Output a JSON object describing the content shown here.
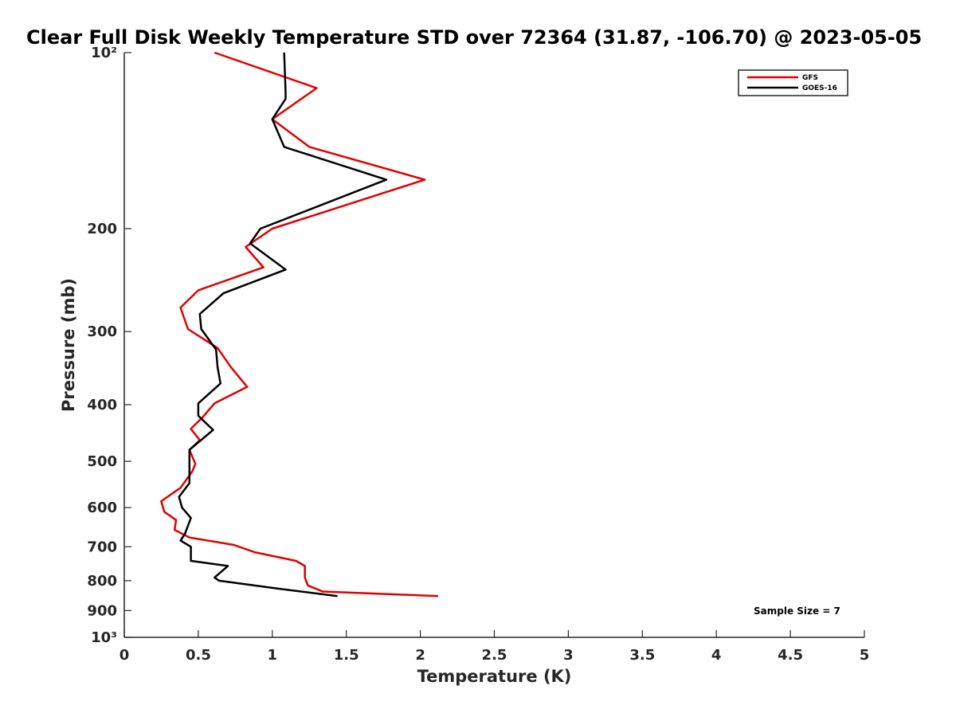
{
  "chart_data": {
    "type": "line",
    "title": "Clear Full Disk Weekly Temperature STD over 72364 (31.87, -106.70) @ 2023-05-05",
    "xlabel": "Temperature (K)",
    "ylabel": "Pressure (mb)",
    "xlim": [
      0,
      5
    ],
    "ylim": [
      100,
      1000
    ],
    "y_scale": "log",
    "y_reversed": true,
    "grid": false,
    "legend_position": "top-right",
    "x_ticks": [
      0,
      0.5,
      1,
      1.5,
      2,
      2.5,
      3,
      3.5,
      4,
      4.5,
      5
    ],
    "x_tick_labels": [
      "0",
      "0.5",
      "1",
      "1.5",
      "2",
      "2.5",
      "3",
      "3.5",
      "4",
      "4.5",
      "5"
    ],
    "y_ticks": [
      100,
      200,
      300,
      400,
      500,
      600,
      700,
      800,
      900,
      1000
    ],
    "y_tick_labels": [
      "10²",
      "200",
      "300",
      "400",
      "500",
      "600",
      "700",
      "800",
      "900",
      "10³"
    ],
    "annotation": "Sample Size = 7",
    "series": [
      {
        "name": "GFS",
        "color": "#e00000",
        "points": [
          [
            0.61,
            100
          ],
          [
            1.3,
            115
          ],
          [
            1.0,
            130
          ],
          [
            1.25,
            145
          ],
          [
            2.03,
            165
          ],
          [
            1.0,
            200
          ],
          [
            0.82,
            215
          ],
          [
            0.94,
            233
          ],
          [
            0.5,
            255
          ],
          [
            0.38,
            273
          ],
          [
            0.43,
            297
          ],
          [
            0.63,
            320
          ],
          [
            0.72,
            345
          ],
          [
            0.83,
            373
          ],
          [
            0.61,
            398
          ],
          [
            0.53,
            420
          ],
          [
            0.45,
            440
          ],
          [
            0.51,
            460
          ],
          [
            0.44,
            478
          ],
          [
            0.48,
            505
          ],
          [
            0.46,
            520
          ],
          [
            0.38,
            555
          ],
          [
            0.25,
            585
          ],
          [
            0.27,
            610
          ],
          [
            0.35,
            630
          ],
          [
            0.34,
            655
          ],
          [
            0.44,
            675
          ],
          [
            0.74,
            695
          ],
          [
            0.88,
            715
          ],
          [
            1.16,
            740
          ],
          [
            1.22,
            755
          ],
          [
            1.22,
            790
          ],
          [
            1.24,
            815
          ],
          [
            1.34,
            835
          ],
          [
            2.12,
            850
          ]
        ]
      },
      {
        "name": "GOES-16",
        "color": "#000000",
        "points": [
          [
            1.08,
            100
          ],
          [
            1.09,
            117
          ],
          [
            1.09,
            120
          ],
          [
            1.0,
            130
          ],
          [
            1.08,
            145
          ],
          [
            1.77,
            165
          ],
          [
            0.92,
            200
          ],
          [
            0.85,
            212
          ],
          [
            1.09,
            235
          ],
          [
            0.67,
            258
          ],
          [
            0.51,
            280
          ],
          [
            0.52,
            297
          ],
          [
            0.62,
            322
          ],
          [
            0.63,
            345
          ],
          [
            0.65,
            368
          ],
          [
            0.5,
            398
          ],
          [
            0.5,
            418
          ],
          [
            0.6,
            442
          ],
          [
            0.44,
            478
          ],
          [
            0.44,
            545
          ],
          [
            0.37,
            575
          ],
          [
            0.39,
            600
          ],
          [
            0.45,
            625
          ],
          [
            0.41,
            665
          ],
          [
            0.38,
            683
          ],
          [
            0.45,
            700
          ],
          [
            0.45,
            740
          ],
          [
            0.7,
            755
          ],
          [
            0.61,
            790
          ],
          [
            0.64,
            800
          ],
          [
            1.05,
            826
          ],
          [
            1.44,
            850
          ]
        ]
      }
    ]
  }
}
